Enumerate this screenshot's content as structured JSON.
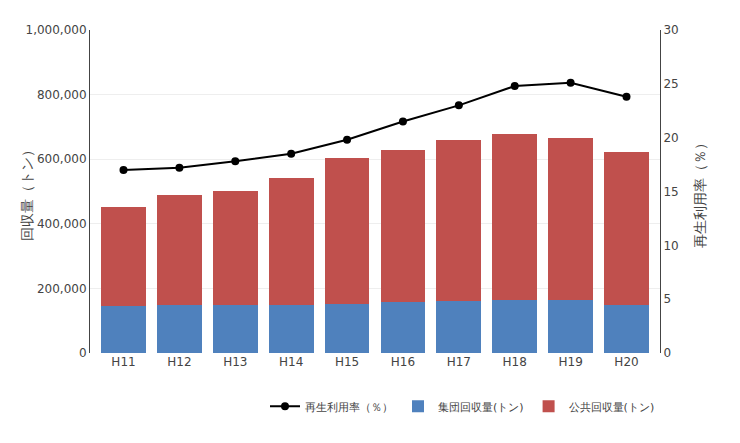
{
  "chart_data": {
    "type": "bar",
    "stacked": true,
    "categories": [
      "H11",
      "H12",
      "H13",
      "H14",
      "H15",
      "H16",
      "H17",
      "H18",
      "H19",
      "H20"
    ],
    "series": [
      {
        "name": "集団回収量(トン)",
        "type": "bar",
        "color": "#4f81bd",
        "values": [
          145000,
          150000,
          150000,
          150000,
          153000,
          158000,
          160000,
          165000,
          163000,
          150000
        ]
      },
      {
        "name": "公共回収量(トン)",
        "type": "bar",
        "color": "#c0504d",
        "values": [
          308000,
          338000,
          352000,
          393000,
          450000,
          472000,
          498000,
          512000,
          503000,
          473000
        ]
      },
      {
        "name": "再生利用率（％）",
        "type": "line",
        "axis": "y2",
        "color": "#000000",
        "marker": "circle",
        "values": [
          17.0,
          17.2,
          17.8,
          18.5,
          19.8,
          21.5,
          23.0,
          24.8,
          25.1,
          23.8
        ]
      }
    ],
    "ylabel": "回収量（トン）",
    "y2label": "再生利用率（％）",
    "ylim": [
      0,
      1000000
    ],
    "yticks": [
      0,
      {
        "value": 200000,
        "label": "200,000"
      },
      {
        "value": 400000,
        "label": "400,000"
      },
      {
        "value": 600000,
        "label": "600,000"
      },
      {
        "value": 800000,
        "label": "800,000"
      },
      {
        "value": 1000000,
        "label": "1,000,000"
      }
    ],
    "y2lim": [
      0,
      30
    ],
    "y2ticks": [
      0,
      5,
      10,
      15,
      20,
      25,
      30
    ],
    "grid": true,
    "legend": "lower right"
  }
}
